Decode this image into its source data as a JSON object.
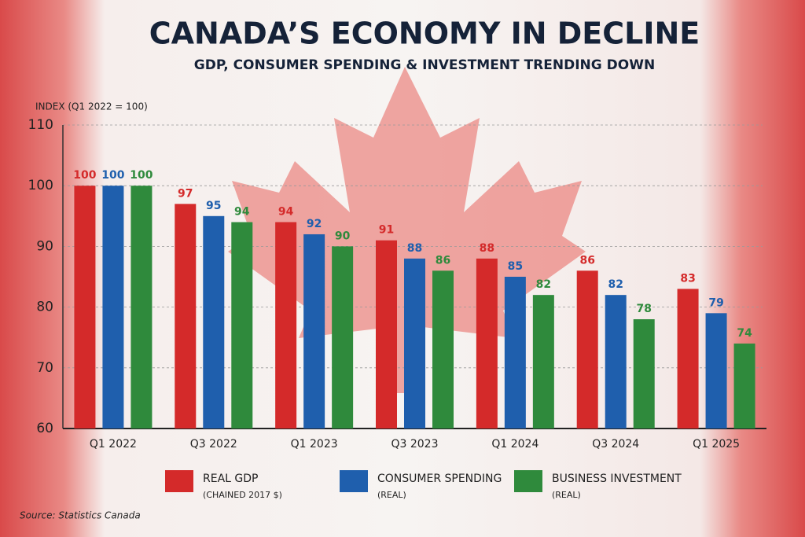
{
  "chart_data": {
    "type": "bar",
    "title": "CANADA’S ECONOMY IN DECLINE",
    "subtitle": "GDP, CONSUMER SPENDING & INVESTMENT TRENDING DOWN",
    "y_label": "INDEX (Q1 2022 = 100)",
    "categories": [
      "Q1 2022",
      "Q3 2022",
      "Q1 2023",
      "Q3 2023",
      "Q1 2024",
      "Q3 2024",
      "Q1 2025"
    ],
    "series": [
      {
        "name": "REAL GDP",
        "note": "(CHAINED 2017 $)",
        "color": "#d42a2a",
        "values": [
          100,
          97,
          94,
          91,
          88,
          86,
          83
        ]
      },
      {
        "name": "CONSUMER SPENDING",
        "note": "(REAL)",
        "color": "#1f5fad",
        "values": [
          100,
          95,
          92,
          88,
          85,
          82,
          79
        ]
      },
      {
        "name": "BUSINESS INVESTMENT",
        "note": "(REAL)",
        "color": "#2f8a3c",
        "values": [
          100,
          94,
          90,
          86,
          82,
          78,
          74
        ]
      }
    ],
    "ylim": [
      60,
      110
    ],
    "yticks": [
      60,
      70,
      80,
      90,
      100,
      110
    ],
    "grid": true,
    "source": "Source: Statistics Canada"
  }
}
